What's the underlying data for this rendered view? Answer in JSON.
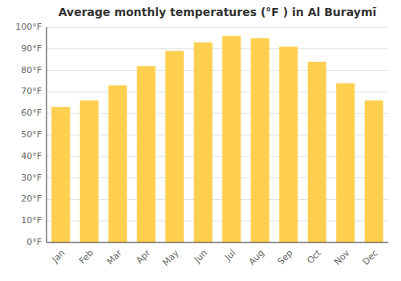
{
  "chart_data": {
    "type": "bar",
    "title": "Average monthly temperatures (°F ) in Al Buraymī",
    "categories": [
      "Jan",
      "Feb",
      "Mar",
      "Apr",
      "May",
      "Jun",
      "Jul",
      "Aug",
      "Sep",
      "Oct",
      "Nov",
      "Dec"
    ],
    "values": [
      63,
      66,
      73,
      82,
      89,
      93,
      96,
      95,
      91,
      84,
      74,
      66
    ],
    "color": "#FFD050",
    "ylim": [
      0,
      100
    ],
    "yticks": [
      {
        "value": 0,
        "label": "0°F"
      },
      {
        "value": 10,
        "label": "10°F"
      },
      {
        "value": 20,
        "label": "20°F"
      },
      {
        "value": 30,
        "label": "30°F"
      },
      {
        "value": 40,
        "label": "40°F"
      },
      {
        "value": 50,
        "label": "50°F"
      },
      {
        "value": 60,
        "label": "60°F"
      },
      {
        "value": 70,
        "label": "70°F"
      },
      {
        "value": 80,
        "label": "80°F"
      },
      {
        "value": 90,
        "label": "90°F"
      },
      {
        "value": 100,
        "label": "100°F"
      }
    ],
    "grid": true
  }
}
